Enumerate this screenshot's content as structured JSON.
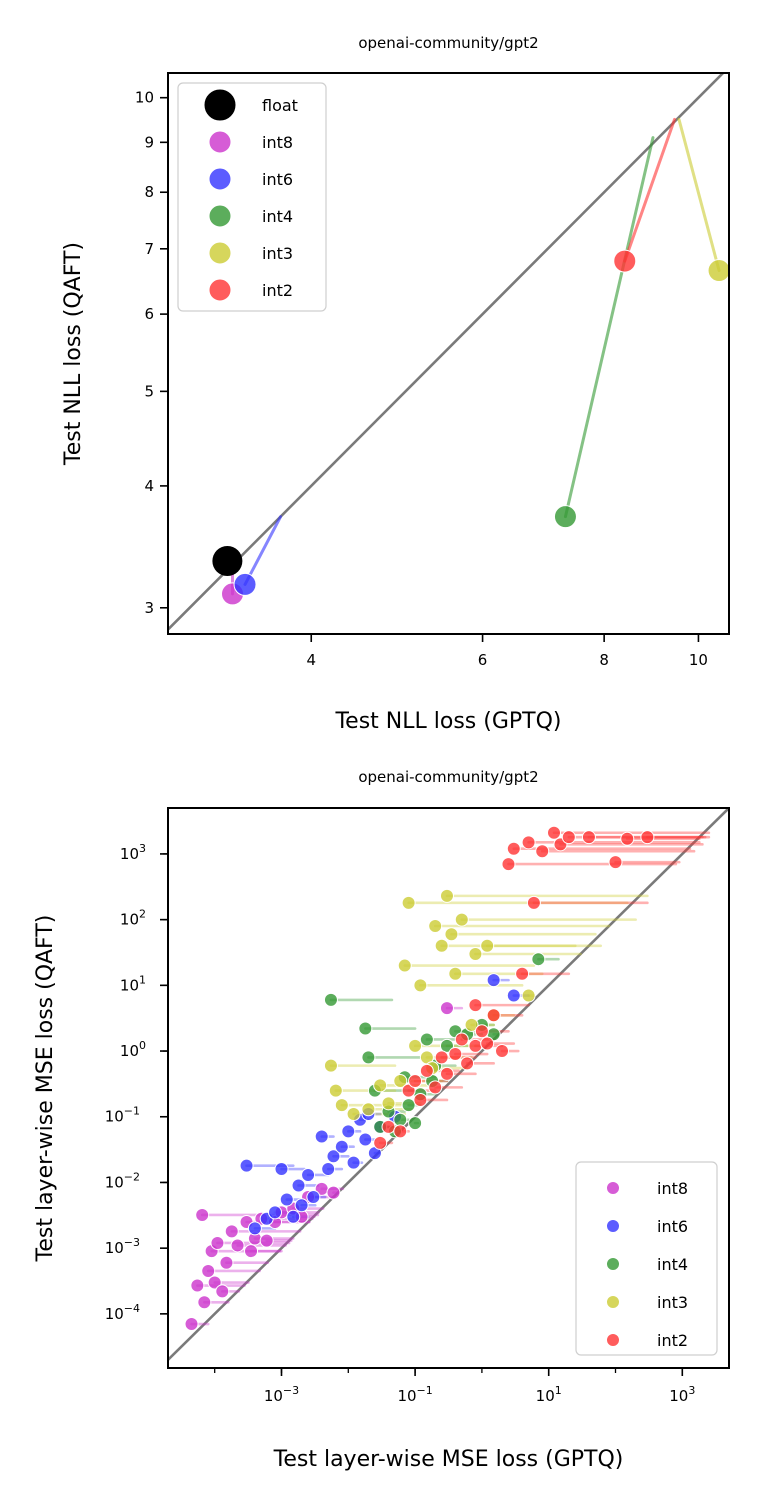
{
  "chart_data": [
    {
      "type": "scatter",
      "title": "openai-community/gpt2",
      "xlabel": "Test NLL loss (GPTQ)",
      "ylabel": "Test NLL loss (QAFT)",
      "xscale": "log",
      "yscale": "log",
      "xlim": [
        2.85,
        10.75
      ],
      "ylim": [
        2.82,
        10.6
      ],
      "xticks": [
        {
          "value": 4,
          "label": "4"
        },
        {
          "value": 6,
          "label": "6"
        },
        {
          "value": 8,
          "label": "8"
        },
        {
          "value": 10,
          "label": "10"
        }
      ],
      "yticks": [
        {
          "value": 3,
          "label": "3"
        },
        {
          "value": 4,
          "label": "4"
        },
        {
          "value": 5,
          "label": "5"
        },
        {
          "value": 6,
          "label": "6"
        },
        {
          "value": 7,
          "label": "7"
        },
        {
          "value": 8,
          "label": "8"
        },
        {
          "value": 9,
          "label": "9"
        },
        {
          "value": 10,
          "label": "10"
        }
      ],
      "diagonal": "y = x",
      "legend_position": "top-left",
      "series": [
        {
          "name": "float",
          "color": "#000000",
          "points": [
            {
              "x": 3.28,
              "y": 3.35,
              "path": [
                [
                  3.28,
                  3.35
                ],
                [
                  3.28,
                  3.35
                ]
              ]
            }
          ]
        },
        {
          "name": "int8",
          "color": "#cc33cc",
          "points": [
            {
              "x": 3.32,
              "y": 3.1,
              "path": [
                [
                  3.32,
                  3.42
                ],
                [
                  3.32,
                  3.1
                ]
              ]
            }
          ]
        },
        {
          "name": "int6",
          "color": "#3333ff",
          "points": [
            {
              "x": 3.42,
              "y": 3.17,
              "path": [
                [
                  3.72,
                  3.72
                ],
                [
                  3.42,
                  3.17
                ]
              ]
            }
          ]
        },
        {
          "name": "int4",
          "color": "#339933",
          "points": [
            {
              "x": 7.3,
              "y": 3.72,
              "path": [
                [
                  8.98,
                  9.1
                ],
                [
                  7.3,
                  3.72
                ]
              ]
            }
          ]
        },
        {
          "name": "int3",
          "color": "#cccc33",
          "points": [
            {
              "x": 10.5,
              "y": 6.65,
              "path": [
                [
                  9.55,
                  9.5
                ],
                [
                  10.5,
                  6.65
                ]
              ]
            }
          ]
        },
        {
          "name": "int2",
          "color": "#ff3333",
          "points": [
            {
              "x": 8.4,
              "y": 6.8,
              "path": [
                [
                  9.45,
                  9.5
                ],
                [
                  8.4,
                  6.8
                ]
              ]
            }
          ]
        }
      ]
    },
    {
      "type": "scatter",
      "title": "openai-community/gpt2",
      "xlabel": "Test layer-wise MSE loss (GPTQ)",
      "ylabel": "Test layer-wise MSE loss (QAFT)",
      "xscale": "log",
      "yscale": "log",
      "xlim": [
        2e-05,
        5000
      ],
      "ylim": [
        1.5e-05,
        5000
      ],
      "xticks": [
        {
          "value": 0.001,
          "base": "10",
          "exp": "−3"
        },
        {
          "value": 0.1,
          "base": "10",
          "exp": "−1"
        },
        {
          "value": 10,
          "base": "10",
          "exp": "1"
        },
        {
          "value": 1000,
          "base": "10",
          "exp": "3"
        }
      ],
      "yticks": [
        {
          "value": 0.0001,
          "base": "10",
          "exp": "−4"
        },
        {
          "value": 0.001,
          "base": "10",
          "exp": "−3"
        },
        {
          "value": 0.01,
          "base": "10",
          "exp": "−2"
        },
        {
          "value": 0.1,
          "base": "10",
          "exp": "−1"
        },
        {
          "value": 1,
          "base": "10",
          "exp": "0"
        },
        {
          "value": 10,
          "base": "10",
          "exp": "1"
        },
        {
          "value": 100,
          "base": "10",
          "exp": "2"
        },
        {
          "value": 1000,
          "base": "10",
          "exp": "3"
        }
      ],
      "diagonal": "y = x",
      "legend_position": "bottom-right",
      "series": [
        {
          "name": "int8",
          "color": "#cc33cc",
          "points": [
            {
              "x": 4.5e-05,
              "y": 7e-05,
              "gx": 8e-05
            },
            {
              "x": 5.5e-05,
              "y": 0.00027,
              "gx": 0.00028
            },
            {
              "x": 7e-05,
              "y": 0.00015,
              "gx": 0.00016
            },
            {
              "x": 8e-05,
              "y": 0.00045,
              "gx": 0.00047
            },
            {
              "x": 0.0001,
              "y": 0.0003,
              "gx": 0.00032
            },
            {
              "x": 6.5e-05,
              "y": 0.0032,
              "gx": 0.0035
            },
            {
              "x": 9e-05,
              "y": 0.0009,
              "gx": 0.00095
            },
            {
              "x": 0.00011,
              "y": 0.0012,
              "gx": 0.0013
            },
            {
              "x": 0.00013,
              "y": 0.00022,
              "gx": 0.00023
            },
            {
              "x": 0.00015,
              "y": 0.0006,
              "gx": 0.00062
            },
            {
              "x": 0.00018,
              "y": 0.0018,
              "gx": 0.0019
            },
            {
              "x": 0.00022,
              "y": 0.0011,
              "gx": 0.00115
            },
            {
              "x": 0.0003,
              "y": 0.0025,
              "gx": 0.0026
            },
            {
              "x": 0.00035,
              "y": 0.0009,
              "gx": 0.001
            },
            {
              "x": 0.0004,
              "y": 0.0014,
              "gx": 0.0015
            },
            {
              "x": 0.0005,
              "y": 0.0028,
              "gx": 0.0029
            },
            {
              "x": 0.0006,
              "y": 0.0013,
              "gx": 0.0014
            },
            {
              "x": 0.0008,
              "y": 0.0025,
              "gx": 0.0026
            },
            {
              "x": 0.001,
              "y": 0.0035,
              "gx": 0.0036
            },
            {
              "x": 0.0015,
              "y": 0.004,
              "gx": 0.0042
            },
            {
              "x": 0.002,
              "y": 0.003,
              "gx": 0.0031
            },
            {
              "x": 0.0025,
              "y": 0.006,
              "gx": 0.0062
            },
            {
              "x": 0.004,
              "y": 0.008,
              "gx": 0.0083
            },
            {
              "x": 0.006,
              "y": 0.007,
              "gx": 0.0072
            },
            {
              "x": 0.3,
              "y": 4.5,
              "gx": 0.5
            }
          ]
        },
        {
          "name": "int6",
          "color": "#3333ff",
          "points": [
            {
              "x": 0.0003,
              "y": 0.018,
              "gx": 0.0015
            },
            {
              "x": 0.0004,
              "y": 0.002,
              "gx": 0.0008
            },
            {
              "x": 0.0006,
              "y": 0.0028,
              "gx": 0.0009
            },
            {
              "x": 0.0008,
              "y": 0.0035,
              "gx": 0.0012
            },
            {
              "x": 0.001,
              "y": 0.016,
              "gx": 0.0022
            },
            {
              "x": 0.0012,
              "y": 0.0055,
              "gx": 0.002
            },
            {
              "x": 0.0015,
              "y": 0.003,
              "gx": 0.0025
            },
            {
              "x": 0.0018,
              "y": 0.009,
              "gx": 0.0035
            },
            {
              "x": 0.002,
              "y": 0.0045,
              "gx": 0.0032
            },
            {
              "x": 0.0025,
              "y": 0.013,
              "gx": 0.005
            },
            {
              "x": 0.003,
              "y": 0.006,
              "gx": 0.0045
            },
            {
              "x": 0.004,
              "y": 0.05,
              "gx": 0.006
            },
            {
              "x": 0.005,
              "y": 0.016,
              "gx": 0.008
            },
            {
              "x": 0.006,
              "y": 0.025,
              "gx": 0.01
            },
            {
              "x": 0.008,
              "y": 0.035,
              "gx": 0.012
            },
            {
              "x": 0.01,
              "y": 0.06,
              "gx": 0.015
            },
            {
              "x": 0.012,
              "y": 0.02,
              "gx": 0.016
            },
            {
              "x": 0.015,
              "y": 0.09,
              "gx": 0.02
            },
            {
              "x": 0.018,
              "y": 0.045,
              "gx": 0.025
            },
            {
              "x": 0.02,
              "y": 0.11,
              "gx": 0.03
            },
            {
              "x": 0.025,
              "y": 0.028,
              "gx": 0.03
            },
            {
              "x": 0.03,
              "y": 0.07,
              "gx": 0.04
            },
            {
              "x": 0.05,
              "y": 0.1,
              "gx": 0.06
            },
            {
              "x": 1.5,
              "y": 12,
              "gx": 2.5
            },
            {
              "x": 3,
              "y": 7,
              "gx": 5
            }
          ]
        },
        {
          "name": "int4",
          "color": "#339933",
          "points": [
            {
              "x": 0.0055,
              "y": 6,
              "gx": 0.045
            },
            {
              "x": 0.018,
              "y": 2.2,
              "gx": 0.1
            },
            {
              "x": 0.02,
              "y": 0.8,
              "gx": 0.12
            },
            {
              "x": 0.025,
              "y": 0.25,
              "gx": 0.1
            },
            {
              "x": 0.03,
              "y": 0.07,
              "gx": 0.05
            },
            {
              "x": 0.04,
              "y": 0.12,
              "gx": 0.07
            },
            {
              "x": 0.05,
              "y": 0.06,
              "gx": 0.06
            },
            {
              "x": 0.06,
              "y": 0.09,
              "gx": 0.08
            },
            {
              "x": 0.07,
              "y": 0.4,
              "gx": 0.2
            },
            {
              "x": 0.08,
              "y": 0.15,
              "gx": 0.12
            },
            {
              "x": 0.1,
              "y": 0.08,
              "gx": 0.11
            },
            {
              "x": 0.12,
              "y": 0.22,
              "gx": 0.2
            },
            {
              "x": 0.15,
              "y": 1.5,
              "gx": 0.4
            },
            {
              "x": 0.18,
              "y": 0.35,
              "gx": 0.3
            },
            {
              "x": 0.2,
              "y": 0.6,
              "gx": 0.4
            },
            {
              "x": 0.3,
              "y": 1.2,
              "gx": 0.6
            },
            {
              "x": 0.4,
              "y": 2,
              "gx": 0.8
            },
            {
              "x": 0.6,
              "y": 1.8,
              "gx": 1
            },
            {
              "x": 1,
              "y": 2.5,
              "gx": 1.5
            },
            {
              "x": 1.5,
              "y": 1.8,
              "gx": 1.8
            },
            {
              "x": 7,
              "y": 25,
              "gx": 14
            }
          ]
        },
        {
          "name": "int3",
          "color": "#cccc33",
          "points": [
            {
              "x": 0.0055,
              "y": 0.6,
              "gx": 0.05
            },
            {
              "x": 0.0065,
              "y": 0.25,
              "gx": 0.05
            },
            {
              "x": 0.008,
              "y": 0.15,
              "gx": 0.06
            },
            {
              "x": 0.012,
              "y": 0.11,
              "gx": 0.07
            },
            {
              "x": 0.02,
              "y": 0.13,
              "gx": 0.09
            },
            {
              "x": 0.03,
              "y": 0.3,
              "gx": 0.15
            },
            {
              "x": 0.04,
              "y": 0.16,
              "gx": 0.12
            },
            {
              "x": 0.06,
              "y": 0.35,
              "gx": 0.25
            },
            {
              "x": 0.07,
              "y": 20,
              "gx": 6
            },
            {
              "x": 0.08,
              "y": 180,
              "gx": 150
            },
            {
              "x": 0.1,
              "y": 1.2,
              "gx": 0.9
            },
            {
              "x": 0.12,
              "y": 10,
              "gx": 4
            },
            {
              "x": 0.15,
              "y": 0.8,
              "gx": 0.7
            },
            {
              "x": 0.18,
              "y": 0.55,
              "gx": 0.6
            },
            {
              "x": 0.2,
              "y": 80,
              "gx": 80
            },
            {
              "x": 0.25,
              "y": 40,
              "gx": 25
            },
            {
              "x": 0.3,
              "y": 230,
              "gx": 300
            },
            {
              "x": 0.35,
              "y": 60,
              "gx": 50
            },
            {
              "x": 0.4,
              "y": 15,
              "gx": 8
            },
            {
              "x": 0.5,
              "y": 100,
              "gx": 200
            },
            {
              "x": 0.7,
              "y": 2.5,
              "gx": 1.5
            },
            {
              "x": 0.8,
              "y": 30,
              "gx": 30
            },
            {
              "x": 1.2,
              "y": 40,
              "gx": 60
            },
            {
              "x": 1.5,
              "y": 3.5,
              "gx": 3
            },
            {
              "x": 5,
              "y": 7,
              "gx": 6
            }
          ]
        },
        {
          "name": "int2",
          "color": "#ff3333",
          "points": [
            {
              "x": 0.03,
              "y": 0.04,
              "gx": 0.045
            },
            {
              "x": 0.04,
              "y": 0.07,
              "gx": 0.06
            },
            {
              "x": 0.06,
              "y": 0.06,
              "gx": 0.08
            },
            {
              "x": 0.08,
              "y": 0.25,
              "gx": 0.2
            },
            {
              "x": 0.1,
              "y": 0.35,
              "gx": 0.3
            },
            {
              "x": 0.12,
              "y": 0.18,
              "gx": 0.3
            },
            {
              "x": 0.15,
              "y": 0.5,
              "gx": 0.45
            },
            {
              "x": 0.2,
              "y": 0.28,
              "gx": 0.5
            },
            {
              "x": 0.25,
              "y": 0.8,
              "gx": 0.8
            },
            {
              "x": 0.3,
              "y": 0.45,
              "gx": 0.8
            },
            {
              "x": 0.4,
              "y": 0.9,
              "gx": 1.2
            },
            {
              "x": 0.5,
              "y": 1.5,
              "gx": 1.5
            },
            {
              "x": 0.6,
              "y": 0.65,
              "gx": 1.5
            },
            {
              "x": 0.8,
              "y": 1.2,
              "gx": 2
            },
            {
              "x": 1,
              "y": 2,
              "gx": 2.5
            },
            {
              "x": 1.2,
              "y": 1.3,
              "gx": 3
            },
            {
              "x": 1.5,
              "y": 3.5,
              "gx": 4
            },
            {
              "x": 2,
              "y": 1,
              "gx": 3.5
            },
            {
              "x": 2.5,
              "y": 700,
              "gx": 800
            },
            {
              "x": 3,
              "y": 1200,
              "gx": 1300
            },
            {
              "x": 4,
              "y": 15,
              "gx": 20
            },
            {
              "x": 5,
              "y": 1500,
              "gx": 1800
            },
            {
              "x": 6,
              "y": 180,
              "gx": 300
            },
            {
              "x": 8,
              "y": 1100,
              "gx": 1500
            },
            {
              "x": 12,
              "y": 2100,
              "gx": 2500
            },
            {
              "x": 15,
              "y": 1400,
              "gx": 2000
            },
            {
              "x": 20,
              "y": 1800,
              "gx": 2200
            },
            {
              "x": 40,
              "y": 1800,
              "gx": 2500
            },
            {
              "x": 100,
              "y": 750,
              "gx": 900
            },
            {
              "x": 150,
              "y": 1700,
              "gx": 1800
            },
            {
              "x": 300,
              "y": 1800,
              "gx": 2000
            },
            {
              "x": 0.8,
              "y": 5,
              "gx": 5
            }
          ]
        }
      ]
    }
  ]
}
